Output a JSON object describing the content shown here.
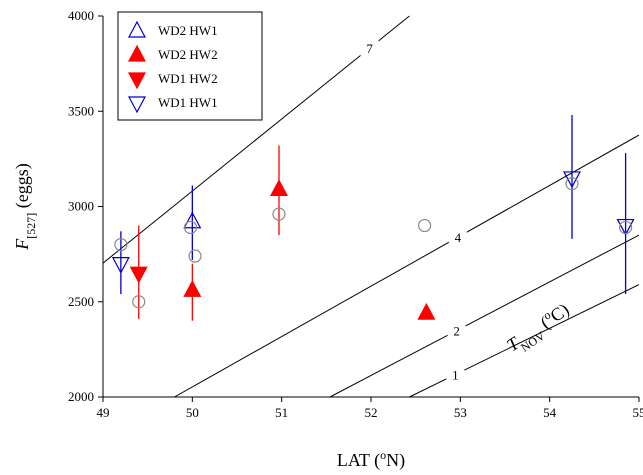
{
  "chart_data": {
    "type": "scatter",
    "x_label": {
      "pre": "LAT (",
      "sup": "o",
      "post": "N)"
    },
    "y_label": {
      "symbol": "F",
      "sub": "[527]",
      "post": " (eggs)"
    },
    "annotation": {
      "symbol": "T",
      "sub": "NOV",
      "pre": " (",
      "sup": "o",
      "post": "C)"
    },
    "xlim": [
      49,
      55
    ],
    "xticks": [
      49,
      50,
      51,
      52,
      53,
      54,
      55
    ],
    "ylim": [
      2000,
      4000
    ],
    "yticks": [
      2000,
      2500,
      3000,
      3500,
      4000
    ],
    "series": [
      {
        "name": "WD2 HW1",
        "color": "#0000cc",
        "marker": "triangle-up",
        "filled": false,
        "x": [
          50.0
        ],
        "y": [
          2920
        ],
        "ylow": [
          2720
        ],
        "yhigh": [
          3110
        ]
      },
      {
        "name": "WD2 HW2",
        "color": "#ff0000",
        "marker": "triangle-up",
        "filled": true,
        "x": [
          50.0,
          50.97,
          52.62
        ],
        "y": [
          2560,
          3090,
          2440
        ],
        "ylow": [
          2400,
          2850,
          null
        ],
        "yhigh": [
          2700,
          3320,
          null
        ]
      },
      {
        "name": "WD1 HW2",
        "color": "#ff0000",
        "marker": "triangle-down",
        "filled": true,
        "x": [
          49.4
        ],
        "y": [
          2650
        ],
        "ylow": [
          2410
        ],
        "yhigh": [
          2900
        ]
      },
      {
        "name": "WD1 HW1",
        "color": "#0000cc",
        "marker": "triangle-down",
        "filled": false,
        "x": [
          49.2,
          54.25,
          54.85
        ],
        "y": [
          2700,
          3150,
          2900
        ],
        "ylow": [
          2540,
          2830,
          2540
        ],
        "yhigh": [
          2870,
          3480,
          3280
        ]
      },
      {
        "color": "#888888",
        "marker": "circle",
        "filled": false,
        "x": [
          49.2,
          49.4,
          49.98,
          50.03,
          50.97,
          52.6,
          54.25,
          54.85
        ],
        "y": [
          2800,
          2500,
          2890,
          2740,
          2960,
          2900,
          3120,
          2890
        ]
      }
    ],
    "isolines": [
      {
        "label": "7",
        "x": [
          49,
          52.43
        ],
        "y": [
          2703,
          4000
        ]
      },
      {
        "label": "4",
        "x": [
          49.8,
          55
        ],
        "y": [
          2000,
          3375
        ]
      },
      {
        "label": "2",
        "x": [
          51.54,
          55
        ],
        "y": [
          2000,
          2850
        ]
      },
      {
        "label": "1",
        "x": [
          52.43,
          55
        ],
        "y": [
          2000,
          2590
        ]
      }
    ]
  }
}
